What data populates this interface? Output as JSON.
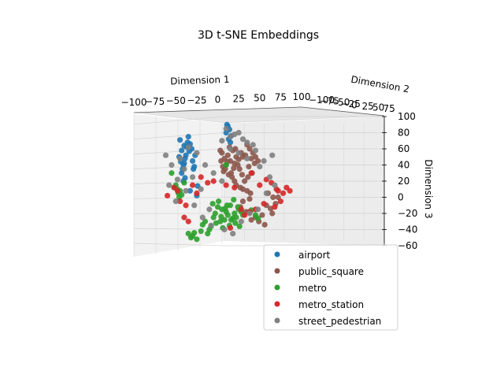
{
  "chart_data": {
    "type": "scatter",
    "projection": "3d",
    "title": "3D t-SNE Embeddings",
    "xlabel": "Dimension 1",
    "ylabel": "Dimension 2",
    "zlabel": "Dimension 3",
    "xlim": [
      -100,
      100
    ],
    "ylim": [
      -100,
      100
    ],
    "zlim": [
      -60,
      100
    ],
    "x_ticks": [
      "−100",
      "−75",
      "−50",
      "−25",
      "0",
      "25",
      "50",
      "75",
      "100"
    ],
    "y_ticks": [
      "−100",
      "−75",
      "−50",
      "−25",
      "0",
      "25",
      "50",
      "75"
    ],
    "z_ticks": [
      "−60",
      "−40",
      "−20",
      "0",
      "20",
      "40",
      "60",
      "80",
      "100"
    ],
    "grid": true,
    "legend_position": "lower-right",
    "series": [
      {
        "name": "airport",
        "color": "#1f77b4",
        "x": [
          -45,
          -43,
          -40,
          -38,
          -44,
          -36,
          -41,
          -34,
          -42,
          -39,
          -37,
          -30,
          -28,
          -46,
          -43,
          -35,
          -31,
          -27,
          -40,
          -33,
          12,
          14,
          10,
          16,
          13,
          11,
          15,
          -39,
          -29,
          -24,
          -25,
          -41,
          -33
        ],
        "z": [
          71,
          58,
          64,
          52,
          44,
          68,
          40,
          57,
          35,
          48,
          62,
          45,
          38,
          50,
          30,
          75,
          60,
          52,
          42,
          66,
          88,
          84,
          80,
          76,
          72,
          90,
          68,
          24,
          35,
          14,
          2,
          20,
          8
        ]
      },
      {
        "name": "public_square",
        "color": "#8c564b",
        "x": [
          5,
          8,
          12,
          15,
          10,
          18,
          22,
          6,
          14,
          20,
          25,
          9,
          16,
          28,
          11,
          19,
          24,
          7,
          13,
          21,
          30,
          17,
          4,
          26,
          3,
          35,
          38,
          42,
          40,
          33,
          45,
          44,
          37,
          41,
          48,
          36,
          32,
          29,
          60,
          66,
          69,
          58,
          63,
          72,
          65,
          30,
          27,
          34,
          45,
          40,
          49,
          53,
          56,
          22,
          30,
          35,
          38,
          20,
          27,
          39
        ],
        "z": [
          55,
          48,
          52,
          45,
          40,
          58,
          50,
          38,
          62,
          42,
          47,
          35,
          30,
          55,
          44,
          36,
          40,
          32,
          28,
          60,
          50,
          25,
          45,
          35,
          58,
          65,
          60,
          55,
          48,
          52,
          50,
          42,
          38,
          30,
          45,
          25,
          20,
          28,
          5,
          0,
          -8,
          -10,
          -14,
          0,
          -20,
          -5,
          -12,
          -18,
          -25,
          -28,
          -30,
          -22,
          -34,
          15,
          10,
          8,
          -2,
          20,
          12,
          5
        ]
      },
      {
        "name": "metro",
        "color": "#2ca02c",
        "x": [
          -50,
          -48,
          -45,
          -52,
          -47,
          -43,
          -40,
          -46,
          0,
          5,
          10,
          15,
          20,
          -5,
          8,
          12,
          18,
          3,
          -2,
          14,
          6,
          25,
          28,
          22,
          30,
          -10,
          -8,
          -15,
          -12,
          -20,
          -18,
          -3,
          4,
          9,
          16,
          21,
          26,
          -6,
          1,
          11,
          19,
          24,
          40,
          45,
          48,
          -35,
          -30,
          -28,
          -25,
          -32,
          10,
          -55
        ],
        "z": [
          15,
          10,
          8,
          12,
          5,
          3,
          18,
          0,
          -12,
          -15,
          -18,
          -10,
          -20,
          -25,
          -28,
          -22,
          -26,
          -30,
          -32,
          -35,
          -38,
          -15,
          -18,
          -25,
          -22,
          -40,
          -36,
          -30,
          -45,
          -42,
          -34,
          -20,
          -24,
          -14,
          -28,
          -32,
          -36,
          -8,
          -5,
          -10,
          -3,
          -12,
          -16,
          -22,
          -26,
          -45,
          -48,
          -44,
          -52,
          -50,
          40,
          30
        ]
      },
      {
        "name": "metro_station",
        "color": "#d62728",
        "x": [
          -52,
          -48,
          -45,
          -38,
          -20,
          -12,
          -5,
          10,
          20,
          40,
          50,
          58,
          64,
          70,
          72,
          78,
          82,
          86,
          75,
          68,
          55,
          45,
          38,
          32,
          28,
          -30,
          -25,
          -40,
          -35,
          -60,
          15
        ],
        "z": [
          12,
          8,
          -5,
          -10,
          25,
          18,
          20,
          15,
          12,
          30,
          15,
          22,
          18,
          10,
          8,
          5,
          12,
          8,
          -5,
          -12,
          -8,
          -15,
          -18,
          -22,
          -15,
          15,
          5,
          -25,
          -30,
          2,
          -38
        ]
      },
      {
        "name": "street_pedestrian",
        "color": "#808080",
        "x": [
          -62,
          -55,
          -45,
          -35,
          -25,
          -15,
          -5,
          5,
          15,
          25,
          35,
          45,
          55,
          65,
          -58,
          -48,
          -38,
          -28,
          -18,
          -8,
          8,
          18,
          28,
          38,
          48,
          58,
          68,
          -40,
          -30,
          -20,
          10,
          20,
          30,
          42,
          50,
          62,
          15,
          25,
          35,
          5,
          -10,
          -50
        ],
        "z": [
          52,
          40,
          48,
          62,
          55,
          40,
          30,
          70,
          75,
          80,
          68,
          58,
          45,
          52,
          15,
          22,
          8,
          -10,
          -25,
          -35,
          -40,
          -45,
          -30,
          -20,
          -15,
          5,
          15,
          35,
          25,
          10,
          85,
          78,
          72,
          65,
          38,
          25,
          60,
          55,
          48,
          20,
          -15,
          -5
        ]
      }
    ]
  }
}
